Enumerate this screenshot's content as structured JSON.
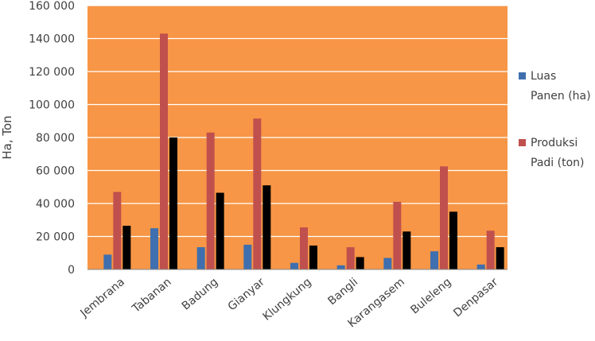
{
  "chart_data": {
    "type": "bar",
    "title": "",
    "xlabel": "",
    "ylabel": "Ha, Ton",
    "ylim": [
      0,
      160000
    ],
    "yticks": [
      0,
      20000,
      40000,
      60000,
      80000,
      100000,
      120000,
      140000,
      160000
    ],
    "ytick_labels": [
      "0",
      "20 000",
      "40 000",
      "60 000",
      "80 000",
      "100 000",
      "120 000",
      "140 000",
      "160 000"
    ],
    "categories": [
      "Jembrana",
      "Tabanan",
      "Badung",
      "Gianyar",
      "Klungkung",
      "Bangli",
      "Karangasem",
      "Buleleng",
      "Denpasar"
    ],
    "series": [
      {
        "name": "Luas Panen (ha)",
        "legend_lines": [
          "Luas",
          "Panen (ha)"
        ],
        "color": "#3F6FAF",
        "values": [
          9000,
          25000,
          13500,
          15000,
          4000,
          2500,
          7000,
          11000,
          3000
        ]
      },
      {
        "name": "Produksi Padi (ton)",
        "legend_lines": [
          "Produksi",
          "Padi (ton)"
        ],
        "color": "#C0504D",
        "values": [
          47000,
          143000,
          83000,
          91500,
          25500,
          13500,
          41000,
          62500,
          23500
        ]
      },
      {
        "name": "",
        "legend_lines": [],
        "color": "#000000",
        "values": [
          26500,
          80000,
          46500,
          51000,
          14500,
          7500,
          23000,
          35000,
          13500
        ]
      }
    ],
    "plot_background": "#F79646",
    "gridlines": true,
    "legend_position": "right"
  }
}
